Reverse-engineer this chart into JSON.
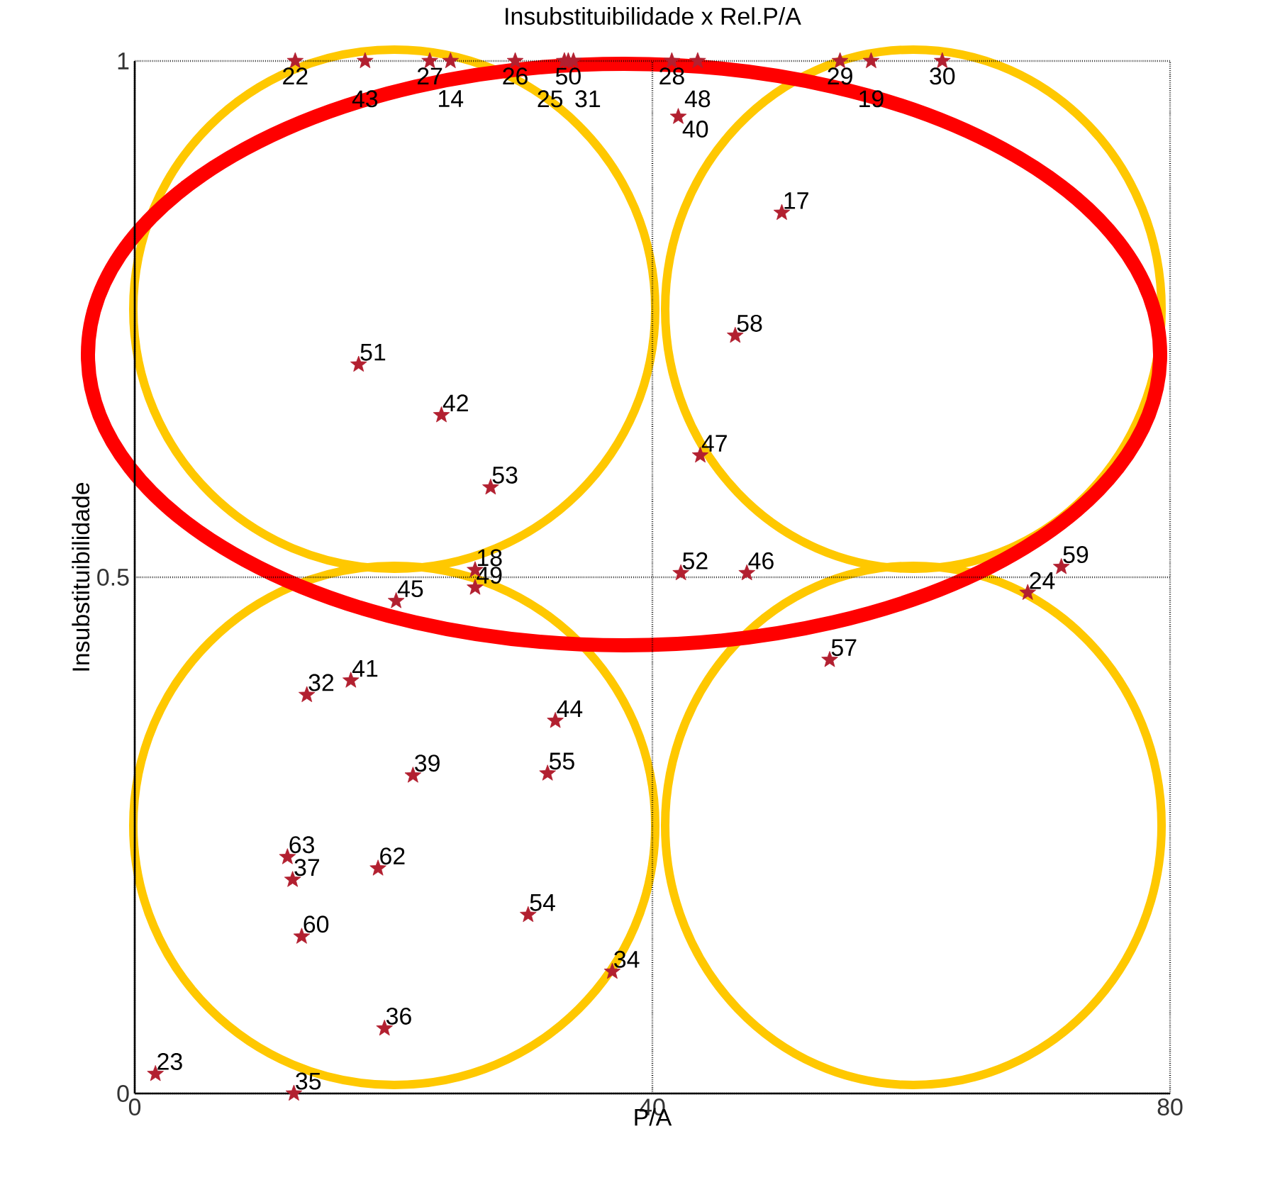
{
  "chart_data": {
    "type": "scatter",
    "title": "Insubstituibilidade x Rel.P/A",
    "xlabel": "P/A",
    "ylabel": "Insubstituibilidade",
    "x": [
      12.4,
      17.8,
      22.8,
      24.4,
      29.4,
      33.2,
      33.5,
      33.9,
      41.5,
      43.5,
      54.5,
      56.9,
      62.4,
      42.0,
      50.0,
      46.4,
      43.7,
      42.2,
      47.3,
      71.6,
      69.0,
      53.7,
      17.3,
      23.7,
      27.5,
      26.3,
      20.2,
      26.3,
      13.3,
      16.7,
      32.5,
      31.9,
      21.5,
      11.8,
      12.2,
      18.8,
      12.9,
      30.4,
      36.9,
      19.3,
      1.6,
      12.3
    ],
    "values": [
      1,
      1,
      1,
      1,
      1,
      1,
      1,
      1,
      1,
      1,
      1,
      1,
      1,
      0.946,
      0.853,
      0.734,
      0.618,
      0.504,
      0.504,
      0.51,
      0.485,
      0.42,
      0.706,
      0.657,
      0.587,
      0.507,
      0.477,
      0.49,
      0.386,
      0.4,
      0.361,
      0.31,
      0.308,
      0.229,
      0.207,
      0.218,
      0.152,
      0.173,
      0.118,
      0.063,
      0.019,
      0.0
    ],
    "annotations": [
      {
        "text": "22",
        "x": 12.4,
        "y": 1
      },
      {
        "text": "43",
        "x": 17.8,
        "y": 1
      },
      {
        "text": "27",
        "x": 22.8,
        "y": 1
      },
      {
        "text": "14",
        "x": 24.4,
        "y": 1
      },
      {
        "text": "26",
        "x": 29.4,
        "y": 1
      },
      {
        "text": "25",
        "x": 33.2,
        "y": 1
      },
      {
        "text": "50",
        "x": 33.5,
        "y": 1
      },
      {
        "text": "31",
        "x": 33.9,
        "y": 1
      },
      {
        "text": "28",
        "x": 41.5,
        "y": 1
      },
      {
        "text": "48",
        "x": 43.5,
        "y": 1
      },
      {
        "text": "29",
        "x": 54.5,
        "y": 1
      },
      {
        "text": "19",
        "x": 56.9,
        "y": 1
      },
      {
        "text": "30",
        "x": 62.4,
        "y": 1
      },
      {
        "text": "40",
        "x": 42.0,
        "y": 0.946
      },
      {
        "text": "17",
        "x": 50.0,
        "y": 0.853
      },
      {
        "text": "58",
        "x": 46.4,
        "y": 0.734
      },
      {
        "text": "47",
        "x": 43.7,
        "y": 0.618
      },
      {
        "text": "52",
        "x": 42.2,
        "y": 0.504
      },
      {
        "text": "46",
        "x": 47.3,
        "y": 0.504
      },
      {
        "text": "59",
        "x": 71.6,
        "y": 0.51
      },
      {
        "text": "24",
        "x": 69.0,
        "y": 0.485
      },
      {
        "text": "57",
        "x": 53.7,
        "y": 0.42
      },
      {
        "text": "51",
        "x": 17.3,
        "y": 0.706
      },
      {
        "text": "42",
        "x": 23.7,
        "y": 0.657
      },
      {
        "text": "53",
        "x": 27.5,
        "y": 0.587
      },
      {
        "text": "18",
        "x": 26.3,
        "y": 0.507
      },
      {
        "text": "45",
        "x": 20.2,
        "y": 0.477
      },
      {
        "text": "49",
        "x": 26.3,
        "y": 0.49
      },
      {
        "text": "32",
        "x": 13.3,
        "y": 0.386
      },
      {
        "text": "41",
        "x": 16.7,
        "y": 0.4
      },
      {
        "text": "44",
        "x": 32.5,
        "y": 0.361
      },
      {
        "text": "55",
        "x": 31.9,
        "y": 0.31
      },
      {
        "text": "39",
        "x": 21.5,
        "y": 0.308
      },
      {
        "text": "63",
        "x": 11.8,
        "y": 0.229
      },
      {
        "text": "37",
        "x": 12.2,
        "y": 0.207
      },
      {
        "text": "62",
        "x": 18.8,
        "y": 0.218
      },
      {
        "text": "60",
        "x": 12.9,
        "y": 0.152
      },
      {
        "text": "54",
        "x": 30.4,
        "y": 0.173
      },
      {
        "text": "34",
        "x": 36.9,
        "y": 0.118
      },
      {
        "text": "36",
        "x": 19.3,
        "y": 0.063
      },
      {
        "text": "23",
        "x": 1.6,
        "y": 0.019
      },
      {
        "text": "35",
        "x": 12.3,
        "y": 0.0
      }
    ],
    "color": "#b22030",
    "marker": "star",
    "xlim": [
      0,
      80
    ],
    "xticks": [
      0,
      40,
      80
    ],
    "ylim": [
      0,
      1
    ],
    "yticks": [
      0,
      0.5,
      1
    ],
    "grid": true
  }
}
